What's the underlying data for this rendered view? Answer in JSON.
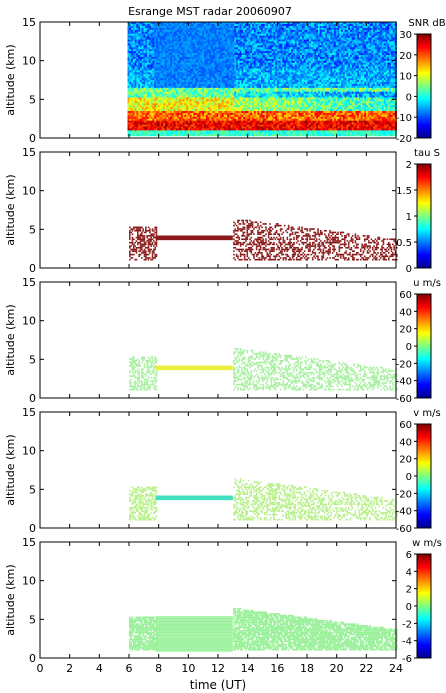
{
  "chart_data": [
    {
      "type": "heatmap",
      "title": "Esrange MST radar 20060907",
      "ylabel": "altitude (km)",
      "xlabel": "",
      "xlim": [
        0,
        24
      ],
      "ylim": [
        0,
        15
      ],
      "xticks": [
        "0",
        "2",
        "4",
        "6",
        "8",
        "10",
        "12",
        "14",
        "16",
        "18",
        "20",
        "22",
        "24"
      ],
      "yticks": [
        "0",
        "5",
        "10",
        "15"
      ],
      "colorbar_label": "SNR dB",
      "colorbar_ticks": [
        "30",
        "20",
        "10",
        "0",
        "-10",
        "-20"
      ],
      "colorbar_range": [
        -20,
        30
      ],
      "data_extent_x": [
        5.9,
        24
      ],
      "data_extent_y": [
        0.3,
        15
      ]
    },
    {
      "type": "heatmap",
      "title": "",
      "ylabel": "altitude (km)",
      "xlabel": "",
      "xlim": [
        0,
        24
      ],
      "ylim": [
        0,
        15
      ],
      "xticks": [
        "0",
        "2",
        "4",
        "6",
        "8",
        "10",
        "12",
        "14",
        "16",
        "18",
        "20",
        "22",
        "24"
      ],
      "yticks": [
        "0",
        "5",
        "10",
        "15"
      ],
      "colorbar_label": "tau S",
      "colorbar_ticks": [
        "2",
        "1.5",
        "1",
        "0.5",
        "0"
      ],
      "colorbar_range": [
        0,
        2
      ],
      "data_extent_x": [
        5.9,
        24
      ],
      "data_extent_y": [
        1,
        6.5
      ]
    },
    {
      "type": "heatmap",
      "title": "",
      "ylabel": "altitude (km)",
      "xlabel": "",
      "xlim": [
        0,
        24
      ],
      "ylim": [
        0,
        15
      ],
      "xticks": [
        "0",
        "2",
        "4",
        "6",
        "8",
        "10",
        "12",
        "14",
        "16",
        "18",
        "20",
        "22",
        "24"
      ],
      "yticks": [
        "0",
        "5",
        "10",
        "15"
      ],
      "colorbar_label": "u m/s",
      "colorbar_ticks": [
        "60",
        "40",
        "20",
        "0",
        "-20",
        "-40",
        "-60"
      ],
      "colorbar_range": [
        -60,
        60
      ],
      "data_extent_x": [
        5.9,
        24
      ],
      "data_extent_y": [
        1,
        6.5
      ]
    },
    {
      "type": "heatmap",
      "title": "",
      "ylabel": "altitude (km)",
      "xlabel": "",
      "xlim": [
        0,
        24
      ],
      "ylim": [
        0,
        15
      ],
      "xticks": [
        "0",
        "2",
        "4",
        "6",
        "8",
        "10",
        "12",
        "14",
        "16",
        "18",
        "20",
        "22",
        "24"
      ],
      "yticks": [
        "0",
        "5",
        "10",
        "15"
      ],
      "colorbar_label": "v m/s",
      "colorbar_ticks": [
        "60",
        "40",
        "20",
        "0",
        "-20",
        "-40",
        "-60"
      ],
      "colorbar_range": [
        -60,
        60
      ],
      "data_extent_x": [
        5.9,
        24
      ],
      "data_extent_y": [
        1,
        6.5
      ]
    },
    {
      "type": "heatmap",
      "title": "",
      "ylabel": "altitude (km)",
      "xlabel": "time (UT)",
      "xlim": [
        0,
        24
      ],
      "ylim": [
        0,
        15
      ],
      "xticks": [
        "0",
        "2",
        "4",
        "6",
        "8",
        "10",
        "12",
        "14",
        "16",
        "18",
        "20",
        "22",
        "24"
      ],
      "yticks": [
        "0",
        "5",
        "10",
        "15"
      ],
      "colorbar_label": "w m/s",
      "colorbar_ticks": [
        "6",
        "4",
        "2",
        "0",
        "-2",
        "-4",
        "-6"
      ],
      "colorbar_range": [
        -6,
        6
      ],
      "data_extent_x": [
        5.9,
        24
      ],
      "data_extent_y": [
        0.3,
        6.5
      ]
    }
  ],
  "colors": {
    "tau_points": "#8b1a1a",
    "u_points": "#a8f0a0",
    "v_points": "#b8f08a",
    "w_points": "#98f098",
    "band_u": "#e8f040",
    "band_v": "#40e0c0"
  }
}
